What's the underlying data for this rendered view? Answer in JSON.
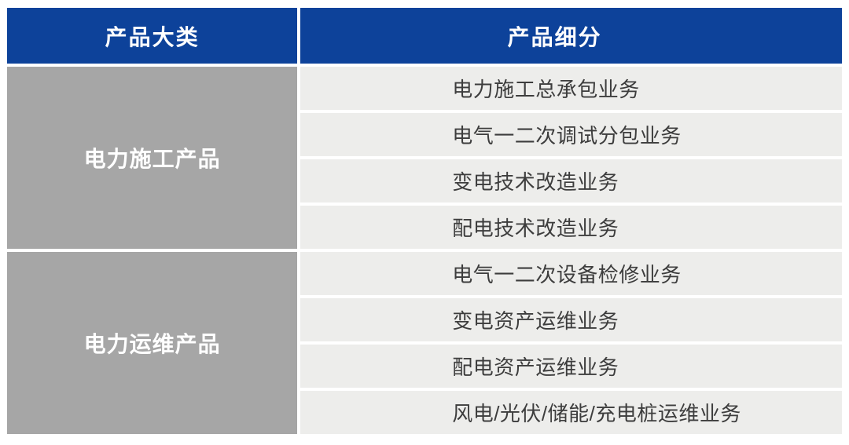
{
  "table": {
    "headers": {
      "category": "产品大类",
      "subdivision": "产品细分"
    },
    "groups": [
      {
        "category": "电力施工产品",
        "items": [
          "电力施工总承包业务",
          "电气一二次调试分包业务",
          "变电技术改造业务",
          "配电技术改造业务"
        ]
      },
      {
        "category": "电力运维产品",
        "items": [
          "电气一二次设备检修业务",
          "变电资产运维业务",
          "配电资产运维业务",
          "风电/光伏/储能/充电桩运维业务"
        ]
      }
    ]
  },
  "colors": {
    "header_bg": "#0D429A",
    "header_text": "#FFFFFF",
    "category_bg": "#A6A6A6",
    "category_text": "#FFFFFF",
    "row_bg": "#EDEDEB",
    "row_text": "#3D3D3D",
    "gap": "#FFFFFF"
  }
}
